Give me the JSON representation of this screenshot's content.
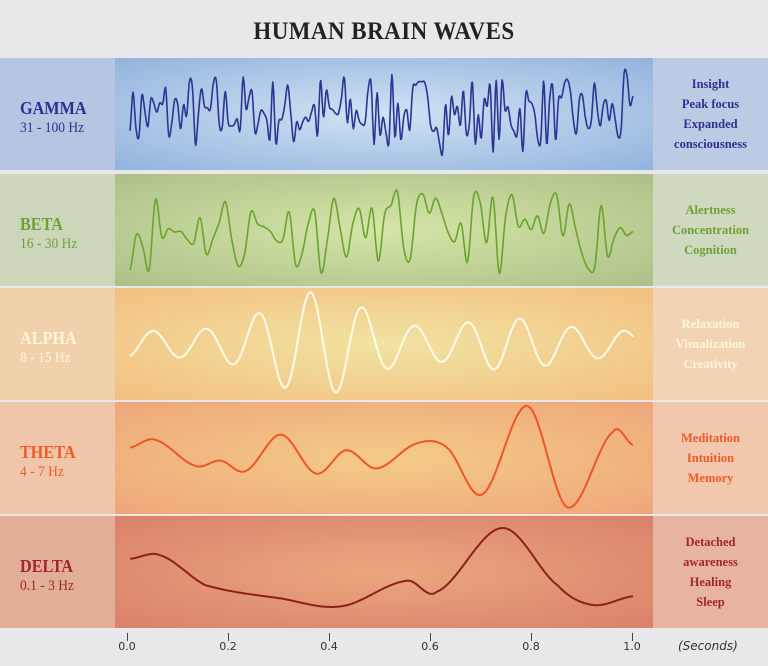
{
  "title": "HUMAN BRAIN WAVES",
  "bands": [
    {
      "name": "GAMMA",
      "range": "31 - 100 Hz",
      "traits": [
        "Insight",
        "Peak focus",
        "Expanded",
        "consciousness"
      ],
      "text_color": "#2e3192",
      "line_color": "#2b3593",
      "left_bg": "#b6c5e2",
      "mid_edge": "#93b3dd",
      "mid_center": "#cfe3f3",
      "right_bg": "#bccae4"
    },
    {
      "name": "BETA",
      "range": "16 - 30 Hz",
      "traits": [
        "Alertness",
        "Concentration",
        "Cognition"
      ],
      "text_color": "#6ea135",
      "line_color": "#6aa32e",
      "left_bg": "#ccd6bb",
      "mid_edge": "#abc089",
      "mid_center": "#d6e5a6",
      "right_bg": "#cfd9bf"
    },
    {
      "name": "ALPHA",
      "range": "8 - 15 Hz",
      "traits": [
        "Relaxation",
        "Visualization",
        "Creativity"
      ],
      "text_color": "#fff6dc",
      "line_color": "#fffbe8",
      "left_bg": "#f1d0ac",
      "mid_edge": "#f2bf80",
      "mid_center": "#f1e3a2",
      "right_bg": "#f2d4b4"
    },
    {
      "name": "THETA",
      "range": "4 - 7 Hz",
      "traits": [
        "Meditation",
        "Intuition",
        "Memory"
      ],
      "text_color": "#f05a28",
      "line_color": "#ef5526",
      "left_bg": "#f0c6ab",
      "mid_edge": "#eea67a",
      "mid_center": "#f4cb88",
      "right_bg": "#f1c7ae"
    },
    {
      "name": "DELTA",
      "range": "0.1 - 3 Hz",
      "traits": [
        "Detached",
        "awareness",
        "Healing",
        "Sleep"
      ],
      "text_color": "#a3262a",
      "line_color": "#8e1f1c",
      "left_bg": "#e3ae98",
      "mid_edge": "#d9816a",
      "mid_center": "#eba77f",
      "right_bg": "#e7b4a0"
    }
  ],
  "axis": {
    "ticks": [
      "0.0",
      "0.2",
      "0.4",
      "0.6",
      "0.8",
      "1.0"
    ],
    "unit": "(Seconds)"
  }
}
